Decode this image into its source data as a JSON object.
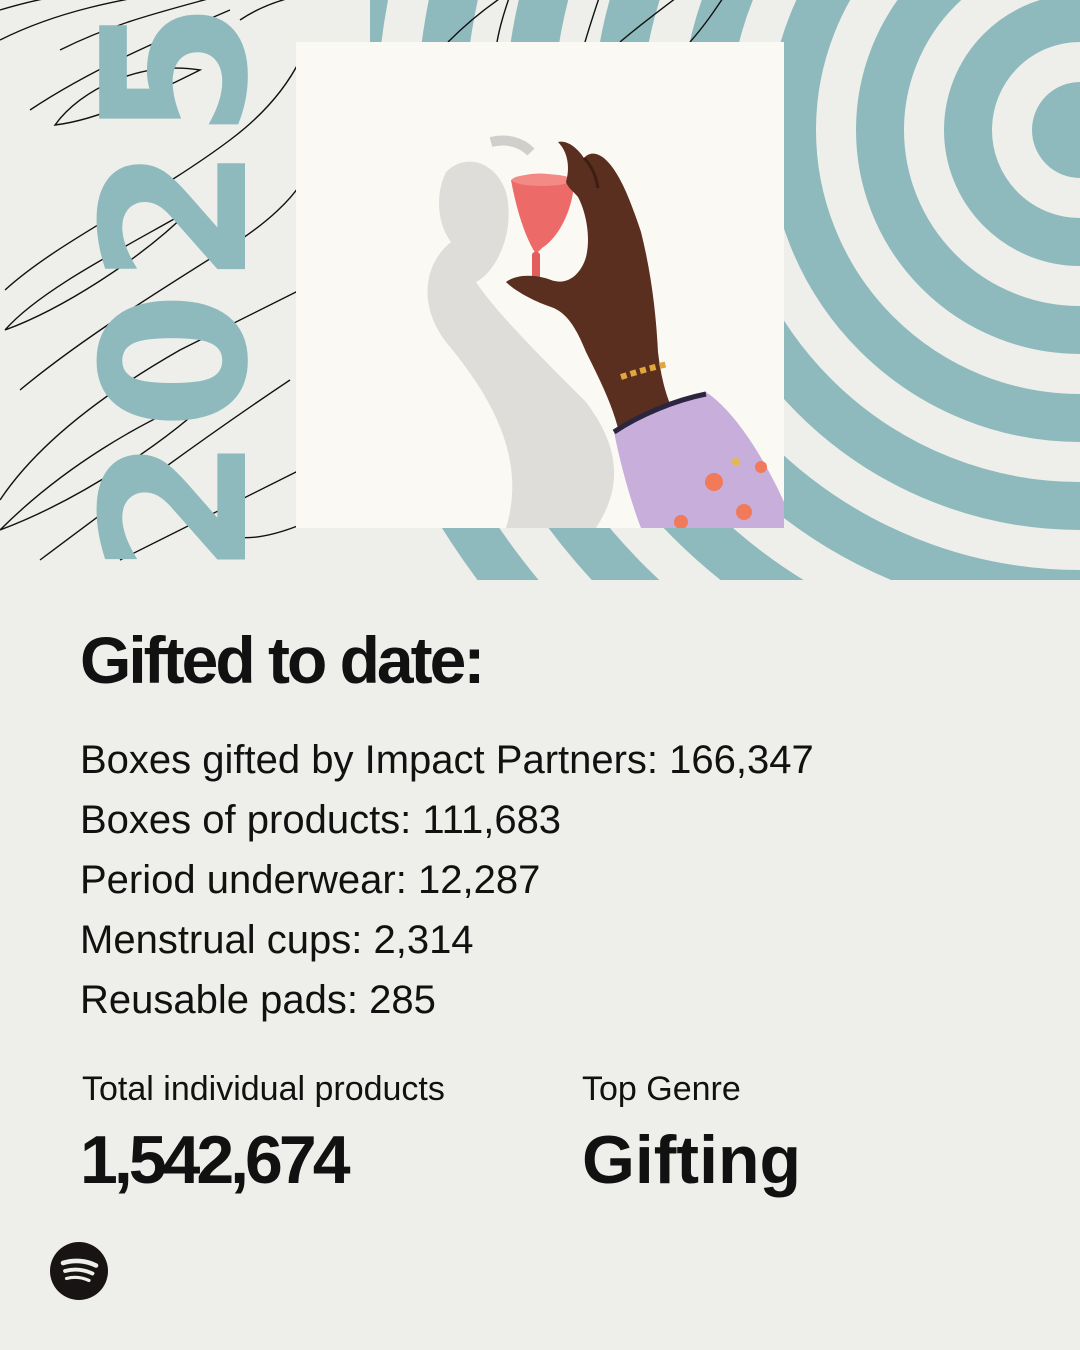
{
  "hero": {
    "year": "2025",
    "accent_color": "#8ebabd",
    "background_color": "#eeefea",
    "photo_description_icon": "hand-holding-menstrual-cup-image"
  },
  "main": {
    "heading": "Gifted to date:",
    "stats": [
      "Boxes gifted by Impact Partners: 166,347",
      "Boxes of products: 111,683",
      "Period underwear: 12,287",
      "Menstrual cups: 2,314",
      "Reusable pads: 285"
    ]
  },
  "totals": {
    "products_label": "Total individual products",
    "products_value": "1,542,674",
    "genre_label": "Top Genre",
    "genre_value": "Gifting"
  },
  "branding": {
    "logo_icon": "spotify-logo-icon"
  }
}
